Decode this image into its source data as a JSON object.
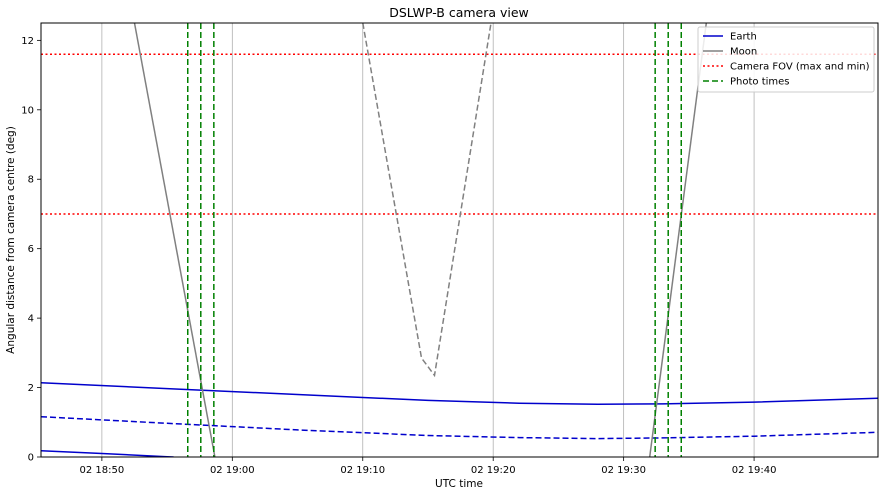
{
  "chart_data": {
    "type": "line",
    "title": "DSLWP-B camera view",
    "xlabel": "UTC time",
    "ylabel": "Angular distance from camera centre (deg)",
    "xlim": [
      "02 18:45:20",
      "02 19:49:30"
    ],
    "ylim": [
      0,
      12.5
    ],
    "grid": "vertical lines at x ticks",
    "legend_position": "top-right",
    "x_ticks": [
      {
        "label": "02 18:50",
        "time": "18:50:00"
      },
      {
        "label": "02 19:00",
        "time": "19:00:00"
      },
      {
        "label": "02 19:10",
        "time": "19:10:00"
      },
      {
        "label": "02 19:20",
        "time": "19:20:00"
      },
      {
        "label": "02 19:30",
        "time": "19:30:00"
      },
      {
        "label": "02 19:40",
        "time": "19:40:00"
      }
    ],
    "y_ticks": [
      0,
      2,
      4,
      6,
      8,
      10,
      12
    ],
    "legend": [
      {
        "label": "Earth",
        "style": "solid",
        "color": "#0000cc"
      },
      {
        "label": "Moon",
        "style": "solid",
        "color": "#808080"
      },
      {
        "label": "Camera FOV (max and min)",
        "style": "dotted",
        "color": "#ff0000"
      },
      {
        "label": "Photo times",
        "style": "dashed",
        "color": "#008000"
      }
    ],
    "series": [
      {
        "role": "earth-edge-far",
        "style": "solid",
        "color": "#0000cc",
        "points": [
          [
            "18:45:20",
            2.14
          ],
          [
            "18:55:00",
            1.97
          ],
          [
            "19:05:00",
            1.8
          ],
          [
            "19:15:00",
            1.63
          ],
          [
            "19:22:00",
            1.55
          ],
          [
            "19:28:00",
            1.52
          ],
          [
            "19:33:00",
            1.53
          ],
          [
            "19:40:00",
            1.58
          ],
          [
            "19:49:30",
            1.69
          ]
        ]
      },
      {
        "role": "earth-centre",
        "style": "dashed",
        "color": "#0000cc",
        "points": [
          [
            "18:45:20",
            1.16
          ],
          [
            "18:55:00",
            0.97
          ],
          [
            "19:05:00",
            0.78
          ],
          [
            "19:15:00",
            0.62
          ],
          [
            "19:22:00",
            0.56
          ],
          [
            "19:28:00",
            0.53
          ],
          [
            "19:33:00",
            0.55
          ],
          [
            "19:40:00",
            0.6
          ],
          [
            "19:49:30",
            0.71
          ]
        ]
      },
      {
        "role": "earth-edge-near",
        "style": "solid",
        "color": "#0000cc",
        "points": [
          [
            "18:45:20",
            0.18
          ],
          [
            "18:50:00",
            0.1
          ],
          [
            "18:55:00",
            0.01
          ],
          [
            "18:55:30",
            0.0
          ]
        ]
      },
      {
        "role": "moon-edge-a",
        "style": "solid",
        "color": "#808080",
        "points": [
          [
            "18:52:30",
            12.5
          ],
          [
            "18:58:40",
            0.0
          ]
        ]
      },
      {
        "role": "moon-centre",
        "style": "dashed",
        "color": "#808080",
        "points": [
          [
            "19:10:00",
            12.5
          ],
          [
            "19:14:30",
            2.85
          ],
          [
            "19:15:30",
            2.35
          ],
          [
            "19:19:50",
            12.5
          ]
        ]
      },
      {
        "role": "moon-edge-b",
        "style": "solid",
        "color": "#808080",
        "points": [
          [
            "19:32:00",
            0.0
          ],
          [
            "19:36:20",
            12.5
          ]
        ]
      }
    ],
    "fov_lines": [
      {
        "label": "max",
        "value": 11.6
      },
      {
        "label": "min",
        "value": 7.0
      }
    ],
    "photo_times": [
      "18:56:35",
      "18:57:35",
      "18:58:35",
      "19:32:25",
      "19:33:25",
      "19:34:25"
    ]
  }
}
